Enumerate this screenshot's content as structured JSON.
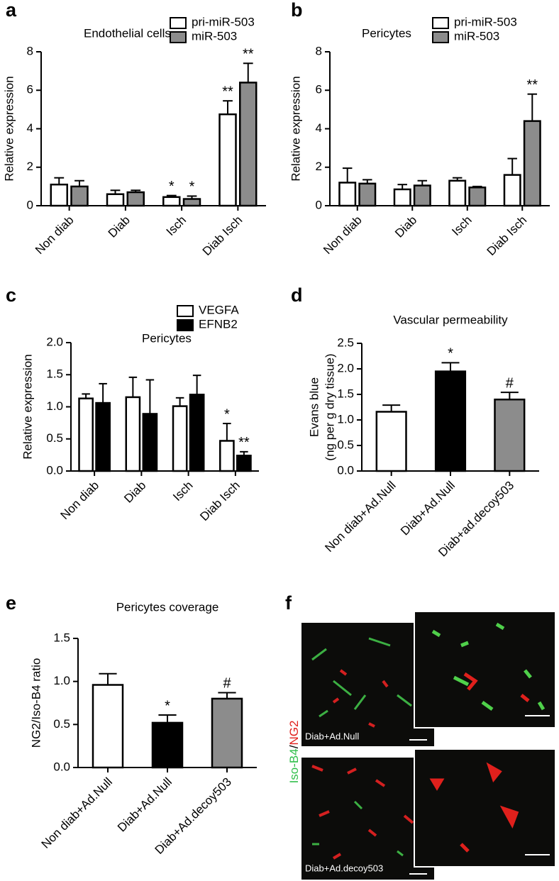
{
  "chart_data": [
    {
      "panel": "a",
      "type": "bar",
      "title": "Endothelial cells",
      "ylabel": "Relative expression",
      "categories": [
        "Non diab",
        "Diab",
        "Isch",
        "Diab Isch"
      ],
      "ylim": [
        0,
        8
      ],
      "yticks": [
        0,
        2,
        4,
        6,
        8
      ],
      "legend": "upper right",
      "series": [
        {
          "name": "pri-miR-503",
          "color": "#ffffff",
          "values": [
            1.1,
            0.6,
            0.45,
            4.75
          ],
          "errors": [
            0.35,
            0.2,
            0.08,
            0.7
          ],
          "annotations": [
            null,
            null,
            "*",
            "**"
          ]
        },
        {
          "name": "miR-503",
          "color": "#8c8c8c",
          "values": [
            1.0,
            0.7,
            0.35,
            6.4
          ],
          "errors": [
            0.3,
            0.1,
            0.15,
            1.0
          ],
          "annotations": [
            null,
            null,
            "*",
            "**"
          ]
        }
      ]
    },
    {
      "panel": "b",
      "type": "bar",
      "title": "Pericytes",
      "ylabel": "Relative expression",
      "categories": [
        "Non diab",
        "Diab",
        "Isch",
        "Diab Isch"
      ],
      "ylim": [
        0,
        8
      ],
      "yticks": [
        0,
        2,
        4,
        6,
        8
      ],
      "legend": "upper right",
      "series": [
        {
          "name": "pri-miR-503",
          "color": "#ffffff",
          "values": [
            1.2,
            0.85,
            1.3,
            1.6
          ],
          "errors": [
            0.75,
            0.25,
            0.15,
            0.85
          ],
          "annotations": [
            null,
            null,
            null,
            null
          ]
        },
        {
          "name": "miR-503",
          "color": "#8c8c8c",
          "values": [
            1.15,
            1.05,
            0.95,
            4.4
          ],
          "errors": [
            0.2,
            0.25,
            0.05,
            1.4
          ],
          "annotations": [
            null,
            null,
            null,
            "**"
          ]
        }
      ]
    },
    {
      "panel": "c",
      "type": "bar",
      "title": "Pericytes",
      "ylabel": "Relative expression",
      "categories": [
        "Non diab",
        "Diab",
        "Isch",
        "Diab Isch"
      ],
      "ylim": [
        0,
        2
      ],
      "yticks": [
        {
          "value": 0,
          "label": "0.0"
        },
        0.5,
        {
          "value": 1,
          "label": "1.0"
        },
        1.5,
        {
          "value": 2,
          "label": "2.0"
        }
      ],
      "legend": "upper right",
      "series": [
        {
          "name": "VEGFA",
          "color": "#ffffff",
          "values": [
            1.13,
            1.15,
            1.01,
            0.47
          ],
          "errors": [
            0.07,
            0.31,
            0.13,
            0.27
          ],
          "annotations": [
            null,
            null,
            null,
            "*"
          ]
        },
        {
          "name": "EFNB2",
          "color": "#000000",
          "values": [
            1.06,
            0.89,
            1.19,
            0.24
          ],
          "errors": [
            0.3,
            0.53,
            0.3,
            0.06
          ],
          "annotations": [
            null,
            null,
            null,
            "**"
          ]
        }
      ]
    },
    {
      "panel": "d",
      "type": "bar",
      "title": "Vascular permeability",
      "ylabel": [
        "Evans blue",
        "(ng per g dry tissue)"
      ],
      "categories": [
        "Non diab+Ad.Null",
        "Diab+Ad.Null",
        "Diab+ad.decoy503"
      ],
      "ylim": [
        0,
        2.5
      ],
      "yticks": [
        {
          "value": 0,
          "label": "0.0"
        },
        0.5,
        {
          "value": 1,
          "label": "1.0"
        },
        1.5,
        {
          "value": 2,
          "label": "2.0"
        },
        2.5
      ],
      "values": [
        1.16,
        1.95,
        1.4
      ],
      "errors": [
        0.13,
        0.17,
        0.14
      ],
      "colors": [
        "#ffffff",
        "#000000",
        "#8c8c8c"
      ],
      "annotations": [
        null,
        "*",
        "#"
      ]
    },
    {
      "panel": "e",
      "type": "bar",
      "title": "Pericytes coverage",
      "ylabel": "NG2/Iso-B4 ratio",
      "categories": [
        "Non diab+Ad.Null",
        "Diab+Ad.Null",
        "Diab+Ad.decoy503"
      ],
      "ylim": [
        0,
        1.5
      ],
      "yticks": [
        {
          "value": 0,
          "label": "0.0"
        },
        0.5,
        {
          "value": 1,
          "label": "1.0"
        },
        1.5
      ],
      "values": [
        0.96,
        0.52,
        0.8
      ],
      "errors": [
        0.13,
        0.09,
        0.07
      ],
      "colors": [
        "#ffffff",
        "#000000",
        "#8c8c8c"
      ],
      "annotations": [
        null,
        "*",
        "#"
      ]
    }
  ],
  "image_panel": {
    "panel": "f",
    "stain_labels": [
      {
        "text": "Iso-B4",
        "color": "#2fbf4a"
      },
      {
        "text": "NG2",
        "color": "#e0201c"
      }
    ],
    "label_separator": "/",
    "rows": [
      "Diab+Ad.Null",
      "Diab+Ad.decoy503"
    ]
  }
}
